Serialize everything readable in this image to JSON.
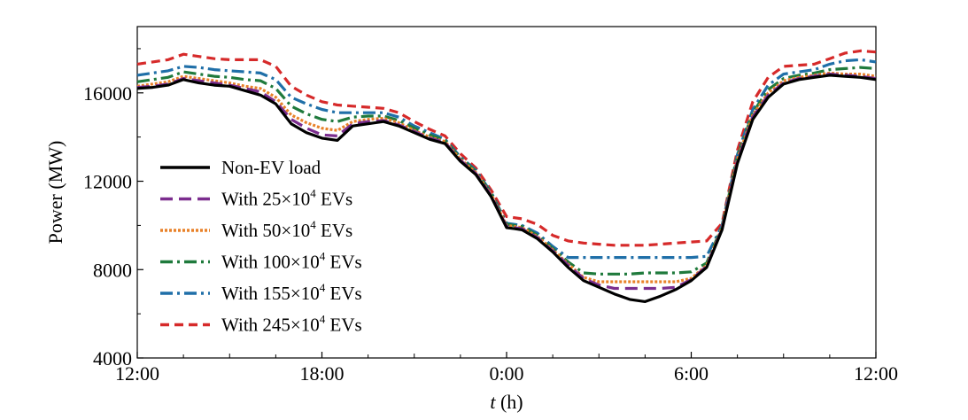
{
  "chart_data": {
    "type": "line",
    "title": "",
    "xlabel_italic": "t",
    "xlabel_rest": " (h)",
    "ylabel": "Power (MW)",
    "xlim": [
      0,
      24
    ],
    "ylim": [
      4000,
      19000
    ],
    "x_ticks": [
      {
        "value": 0,
        "label": "12:00"
      },
      {
        "value": 6,
        "label": "18:00"
      },
      {
        "value": 12,
        "label": "0:00"
      },
      {
        "value": 18,
        "label": "6:00"
      },
      {
        "value": 24,
        "label": "12:00"
      }
    ],
    "y_ticks": [
      {
        "value": 4000,
        "label": "4000"
      },
      {
        "value": 8000,
        "label": "8000"
      },
      {
        "value": 12000,
        "label": "12000"
      },
      {
        "value": 16000,
        "label": "16000"
      }
    ],
    "legend_position": "left",
    "x": [
      0,
      0.5,
      1,
      1.5,
      2,
      2.5,
      3,
      3.5,
      4,
      4.5,
      5,
      5.5,
      6,
      6.5,
      7,
      7.5,
      8,
      8.5,
      9,
      9.5,
      10,
      10.5,
      11,
      11.5,
      12,
      12.25,
      12.5,
      13,
      13.5,
      14,
      14.5,
      15,
      15.5,
      16,
      16.5,
      17,
      17.5,
      18,
      18.5,
      19,
      19.5,
      20,
      20.5,
      21,
      21.5,
      22,
      22.5,
      23,
      23.5,
      24
    ],
    "series": [
      {
        "name": "Non-EV load",
        "color": "#000000",
        "dash": "solid",
        "values": [
          16200,
          16250,
          16350,
          16600,
          16450,
          16350,
          16300,
          16100,
          15900,
          15500,
          14600,
          14200,
          13950,
          13850,
          14500,
          14600,
          14700,
          14500,
          14200,
          13900,
          13700,
          12900,
          12300,
          11300,
          9900,
          9850,
          9800,
          9400,
          8800,
          8100,
          7500,
          7200,
          6900,
          6650,
          6550,
          6800,
          7100,
          7500,
          8100,
          9800,
          12800,
          14800,
          15800,
          16400,
          16600,
          16700,
          16800,
          16750,
          16700,
          16600
        ]
      },
      {
        "name": "With 25×10⁴ EVs",
        "sup": "4",
        "prefix": "With 25×10",
        "suffix": " EVs",
        "color": "#7b2d8e",
        "dash": "14,7",
        "values": [
          16250,
          16300,
          16400,
          16650,
          16550,
          16450,
          16350,
          16200,
          16050,
          15600,
          14800,
          14400,
          14100,
          14050,
          14600,
          14700,
          14750,
          14550,
          14250,
          13950,
          13750,
          12950,
          12350,
          11350,
          9950,
          9900,
          9850,
          9450,
          8850,
          8200,
          7600,
          7300,
          7150,
          7150,
          7150,
          7150,
          7200,
          7550,
          8150,
          9850,
          12900,
          14900,
          15900,
          16450,
          16650,
          16750,
          16850,
          16800,
          16750,
          16650
        ]
      },
      {
        "name": "With 50×10⁴ EVs",
        "sup": "4",
        "prefix": "With 50×10",
        "suffix": " EVs",
        "color": "#e8822a",
        "dash": "3,2",
        "values": [
          16300,
          16400,
          16500,
          16750,
          16650,
          16550,
          16450,
          16300,
          16200,
          15800,
          15000,
          14650,
          14400,
          14300,
          14700,
          14800,
          14850,
          14650,
          14300,
          14000,
          13800,
          13000,
          12400,
          11400,
          10000,
          9950,
          9900,
          9500,
          8900,
          8250,
          7650,
          7450,
          7450,
          7450,
          7450,
          7450,
          7450,
          7600,
          8200,
          9900,
          13000,
          15000,
          16000,
          16550,
          16700,
          16800,
          16900,
          16850,
          16850,
          16750
        ]
      },
      {
        "name": "With 100×10⁴ EVs",
        "sup": "4",
        "prefix": "With 100×10",
        "suffix": " EVs",
        "color": "#1f7a3c",
        "dash": "14,5,3,5",
        "values": [
          16500,
          16600,
          16700,
          16950,
          16850,
          16750,
          16700,
          16600,
          16550,
          16200,
          15400,
          15050,
          14800,
          14700,
          14900,
          14950,
          14950,
          14750,
          14400,
          14100,
          13850,
          13050,
          12450,
          11450,
          10050,
          10000,
          9950,
          9550,
          8950,
          8350,
          7850,
          7800,
          7800,
          7800,
          7850,
          7850,
          7850,
          7900,
          8300,
          9950,
          13100,
          15100,
          16150,
          16650,
          16800,
          16900,
          17050,
          17100,
          17150,
          17100
        ]
      },
      {
        "name": "With 155×10⁴ EVs",
        "sup": "4",
        "prefix": "With 155×10",
        "suffix": " EVs",
        "color": "#1f6fa8",
        "dash": "14,5,3,5",
        "values": [
          16800,
          16900,
          17000,
          17200,
          17150,
          17050,
          17000,
          16950,
          16900,
          16600,
          15800,
          15500,
          15250,
          15100,
          15100,
          15100,
          15100,
          14900,
          14500,
          14200,
          13900,
          13100,
          12500,
          11500,
          10100,
          10050,
          10000,
          9650,
          9050,
          8550,
          8550,
          8550,
          8550,
          8550,
          8550,
          8550,
          8550,
          8550,
          8600,
          10000,
          13200,
          15250,
          16350,
          16850,
          16950,
          17050,
          17300,
          17450,
          17500,
          17400
        ]
      },
      {
        "name": "With 245×10⁴ EVs",
        "sup": "4",
        "prefix": "With 245×10",
        "suffix": " EVs",
        "color": "#d62a2a",
        "dash": "10,6",
        "values": [
          17300,
          17400,
          17500,
          17750,
          17650,
          17550,
          17500,
          17500,
          17500,
          17200,
          16300,
          15900,
          15600,
          15450,
          15400,
          15350,
          15300,
          15100,
          14700,
          14350,
          14050,
          13250,
          12600,
          11600,
          10400,
          10350,
          10300,
          10050,
          9550,
          9300,
          9200,
          9150,
          9100,
          9100,
          9100,
          9150,
          9200,
          9250,
          9300,
          10100,
          13400,
          15600,
          16700,
          17200,
          17250,
          17300,
          17550,
          17800,
          17900,
          17850
        ]
      }
    ]
  }
}
